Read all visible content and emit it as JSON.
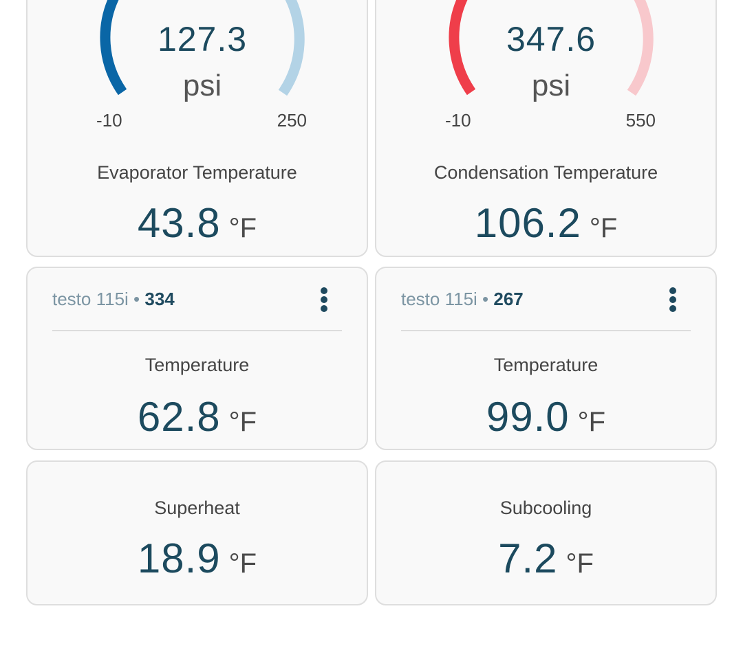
{
  "colors": {
    "pressure_low_accent": "#0a66a6",
    "pressure_low_track": "#b3d3e6",
    "pressure_high_accent": "#ef3e4a",
    "pressure_high_track": "#f8c8cc",
    "value_text": "#1c4a5e",
    "card_background": "#f9f9f9",
    "card_border": "#dedede"
  },
  "cards": {
    "low_side": {
      "gauge": {
        "value": "127.3",
        "unit": "psi",
        "min": "-10",
        "max": "250",
        "fill_fraction": 0.35
      },
      "label": "Evaporator Temperature",
      "value": "43.8",
      "unit": "°F"
    },
    "high_side": {
      "gauge": {
        "value": "347.6",
        "unit": "psi",
        "min": "-10",
        "max": "550",
        "fill_fraction": 0.38
      },
      "label": "Condensation Temperature",
      "value": "106.2",
      "unit": "°F"
    },
    "temp_1": {
      "device_name": "testo 115i",
      "separator": " • ",
      "serial": "334",
      "menu_icon": "more-vertical-icon",
      "label": "Temperature",
      "value": "62.8",
      "unit": "°F"
    },
    "temp_2": {
      "device_name": "testo 115i",
      "separator": " • ",
      "serial": "267",
      "menu_icon": "more-vertical-icon",
      "label": "Temperature",
      "value": "99.0",
      "unit": "°F"
    },
    "superheat": {
      "label": "Superheat",
      "value": "18.9",
      "unit": "°F"
    },
    "subcooling": {
      "label": "Subcooling",
      "value": "7.2",
      "unit": "°F"
    }
  }
}
